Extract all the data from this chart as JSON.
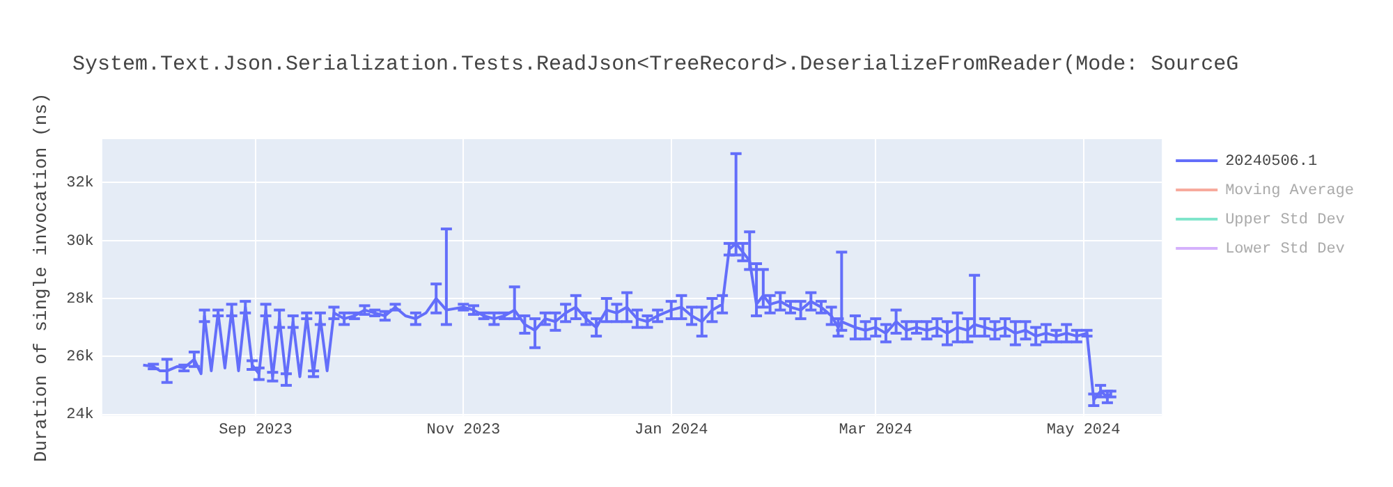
{
  "chart_data": {
    "type": "line",
    "title": "System.Text.Json.Serialization.Tests.ReadJson<TreeRecord>.DeserializeFromReader(Mode: SourceG",
    "ylabel": "Duration of single invocation (ns)",
    "x": [
      "2023-07-30",
      "2023-08-02",
      "2023-08-04",
      "2023-08-06",
      "2023-08-09",
      "2023-08-11",
      "2023-08-14",
      "2023-08-16",
      "2023-08-17",
      "2023-08-19",
      "2023-08-21",
      "2023-08-23",
      "2023-08-25",
      "2023-08-27",
      "2023-08-29",
      "2023-08-31",
      "2023-09-02",
      "2023-09-04",
      "2023-09-06",
      "2023-09-08",
      "2023-09-10",
      "2023-09-12",
      "2023-09-14",
      "2023-09-16",
      "2023-09-18",
      "2023-09-20",
      "2023-09-22",
      "2023-09-24",
      "2023-09-27",
      "2023-09-30",
      "2023-10-03",
      "2023-10-06",
      "2023-10-09",
      "2023-10-12",
      "2023-10-15",
      "2023-10-18",
      "2023-10-21",
      "2023-10-24",
      "2023-10-27",
      "2023-11-01",
      "2023-11-04",
      "2023-11-07",
      "2023-11-10",
      "2023-11-13",
      "2023-11-16",
      "2023-11-19",
      "2023-11-22",
      "2023-11-25",
      "2023-11-28",
      "2023-12-01",
      "2023-12-04",
      "2023-12-07",
      "2023-12-10",
      "2023-12-13",
      "2023-12-16",
      "2023-12-19",
      "2023-12-22",
      "2023-12-25",
      "2023-12-28",
      "2024-01-01",
      "2024-01-04",
      "2024-01-07",
      "2024-01-10",
      "2024-01-13",
      "2024-01-16",
      "2024-01-18",
      "2024-01-20",
      "2024-01-22",
      "2024-01-24",
      "2024-01-26",
      "2024-01-28",
      "2024-01-30",
      "2024-02-02",
      "2024-02-05",
      "2024-02-08",
      "2024-02-11",
      "2024-02-14",
      "2024-02-17",
      "2024-02-19",
      "2024-02-20",
      "2024-02-24",
      "2024-02-27",
      "2024-03-01",
      "2024-03-04",
      "2024-03-07",
      "2024-03-10",
      "2024-03-13",
      "2024-03-16",
      "2024-03-19",
      "2024-03-22",
      "2024-03-25",
      "2024-03-28",
      "2024-03-30",
      "2024-04-02",
      "2024-04-05",
      "2024-04-08",
      "2024-04-11",
      "2024-04-14",
      "2024-04-17",
      "2024-04-20",
      "2024-04-23",
      "2024-04-26",
      "2024-04-29",
      "2024-05-02",
      "2024-05-04",
      "2024-05-06",
      "2024-05-08",
      "2024-05-09"
    ],
    "series": [
      {
        "name": "20240506.1",
        "color": "#636efa",
        "values": [
          25700,
          25650,
          25500,
          25500,
          25650,
          25600,
          25900,
          25400,
          27400,
          25500,
          27500,
          25600,
          27600,
          25500,
          27700,
          25700,
          25400,
          27600,
          25300,
          27300,
          25200,
          27200,
          25300,
          27400,
          25400,
          27300,
          25500,
          27500,
          27300,
          27400,
          27600,
          27500,
          27400,
          27700,
          27400,
          27300,
          27500,
          28000,
          27600,
          27700,
          27600,
          27400,
          27300,
          27400,
          27600,
          27100,
          26900,
          27300,
          27200,
          27500,
          27700,
          27300,
          27000,
          27600,
          27500,
          27700,
          27300,
          27200,
          27400,
          27600,
          27700,
          27400,
          27200,
          27600,
          27800,
          29700,
          29900,
          29600,
          29300,
          27800,
          28100,
          27800,
          27900,
          27700,
          27600,
          27900,
          27700,
          27400,
          27000,
          27200,
          27000,
          26900,
          27000,
          26800,
          27200,
          26900,
          27000,
          26900,
          27000,
          26800,
          27000,
          26900,
          27100,
          27000,
          26900,
          27000,
          26800,
          26900,
          26700,
          26800,
          26700,
          26800,
          26700,
          26800,
          24500,
          24800,
          24600,
          24700
        ],
        "errors": [
          null,
          80,
          null,
          400,
          null,
          100,
          250,
          null,
          200,
          null,
          100,
          null,
          200,
          null,
          200,
          150,
          200,
          200,
          150,
          300,
          200,
          200,
          null,
          100,
          100,
          200,
          null,
          200,
          200,
          100,
          150,
          100,
          150,
          100,
          null,
          200,
          null,
          500,
          [
            27100,
            30400
          ],
          100,
          150,
          100,
          200,
          100,
          [
            27300,
            28400
          ],
          300,
          [
            26300,
            27300
          ],
          200,
          300,
          300,
          400,
          200,
          300,
          400,
          300,
          500,
          300,
          200,
          200,
          300,
          400,
          300,
          500,
          400,
          300,
          200,
          [
            29500,
            33000
          ],
          300,
          [
            29000,
            30300
          ],
          [
            27400,
            29200
          ],
          [
            27700,
            29000
          ],
          300,
          300,
          200,
          300,
          300,
          200,
          300,
          300,
          [
            26900,
            29600
          ],
          400,
          300,
          300,
          300,
          400,
          300,
          200,
          300,
          300,
          400,
          500,
          400,
          [
            26700,
            28800
          ],
          300,
          300,
          300,
          400,
          300,
          300,
          300,
          200,
          300,
          200,
          100,
          200,
          200,
          200,
          100
        ]
      },
      {
        "name": "Moving Average",
        "color": "#f7aa9d",
        "values": [
          null,
          null,
          null,
          null,
          null,
          null,
          null,
          null,
          null,
          null,
          null,
          null,
          null,
          null,
          null,
          null,
          null,
          null,
          null,
          null,
          null,
          null,
          null,
          null,
          null,
          null,
          null,
          null,
          null,
          null,
          null,
          null,
          null,
          null,
          null,
          null,
          null,
          null,
          null,
          null,
          null,
          null,
          null,
          null,
          null,
          null,
          null,
          null,
          null,
          null,
          null,
          null,
          null,
          null,
          null,
          null,
          null,
          null,
          null,
          null,
          null,
          null,
          null,
          null,
          null,
          null,
          null,
          null,
          null,
          null,
          null,
          null,
          null,
          null,
          null,
          null,
          null,
          null,
          null,
          null,
          null,
          null,
          null,
          null,
          null,
          null,
          null,
          null,
          null,
          null,
          null,
          null,
          null,
          null,
          null,
          null,
          null,
          null,
          null,
          null,
          null,
          null,
          null,
          null,
          null,
          null,
          null,
          null
        ]
      },
      {
        "name": "Upper Std Dev",
        "color": "#80e5cb",
        "values": [
          null,
          null,
          null,
          null,
          null,
          null,
          null,
          null,
          null,
          null,
          null,
          null,
          null,
          null,
          null,
          null,
          null,
          null,
          null,
          null,
          null,
          null,
          null,
          null,
          null,
          null,
          null,
          null,
          null,
          null,
          null,
          null,
          null,
          null,
          null,
          null,
          null,
          null,
          null,
          null,
          null,
          null,
          null,
          null,
          null,
          null,
          null,
          null,
          null,
          null,
          null,
          null,
          null,
          null,
          null,
          null,
          null,
          null,
          null,
          null,
          null,
          null,
          null,
          null,
          null,
          null,
          null,
          null,
          null,
          null,
          null,
          null,
          null,
          null,
          null,
          null,
          null,
          null,
          null,
          null,
          null,
          null,
          null,
          null,
          null,
          null,
          null,
          null,
          null,
          null,
          null,
          null,
          null,
          null,
          null,
          null,
          null,
          null,
          null,
          null,
          null,
          null,
          null,
          null,
          null,
          null,
          null,
          null
        ]
      },
      {
        "name": "Lower Std Dev",
        "color": "#d5b1fc",
        "values": [
          null,
          null,
          null,
          null,
          null,
          null,
          null,
          null,
          null,
          null,
          null,
          null,
          null,
          null,
          null,
          null,
          null,
          null,
          null,
          null,
          null,
          null,
          null,
          null,
          null,
          null,
          null,
          null,
          null,
          null,
          null,
          null,
          null,
          null,
          null,
          null,
          null,
          null,
          null,
          null,
          null,
          null,
          null,
          null,
          null,
          null,
          null,
          null,
          null,
          null,
          null,
          null,
          null,
          null,
          null,
          null,
          null,
          null,
          null,
          null,
          null,
          null,
          null,
          null,
          null,
          null,
          null,
          null,
          null,
          null,
          null,
          null,
          null,
          null,
          null,
          null,
          null,
          null,
          null,
          null,
          null,
          null,
          null,
          null,
          null,
          null,
          null,
          null,
          null,
          null,
          null,
          null,
          null,
          null,
          null,
          null,
          null,
          null,
          null,
          null,
          null,
          null,
          null,
          null,
          null,
          null,
          null,
          null
        ]
      }
    ],
    "xlim": [
      "2023-07-18",
      "2024-05-24"
    ],
    "ylim": [
      23950,
      33500
    ],
    "xticks": [
      {
        "value": "2023-09-01",
        "label": "Sep 2023"
      },
      {
        "value": "2023-11-01",
        "label": "Nov 2023"
      },
      {
        "value": "2024-01-01",
        "label": "Jan 2024"
      },
      {
        "value": "2024-03-01",
        "label": "Mar 2024"
      },
      {
        "value": "2024-05-01",
        "label": "May 2024"
      }
    ],
    "yticks": [
      {
        "value": 24000,
        "label": "24k"
      },
      {
        "value": 26000,
        "label": "26k"
      },
      {
        "value": 28000,
        "label": "28k"
      },
      {
        "value": 30000,
        "label": "30k"
      },
      {
        "value": 32000,
        "label": "32k"
      }
    ],
    "grid": true,
    "legend": "top right",
    "line_style": "solid"
  }
}
